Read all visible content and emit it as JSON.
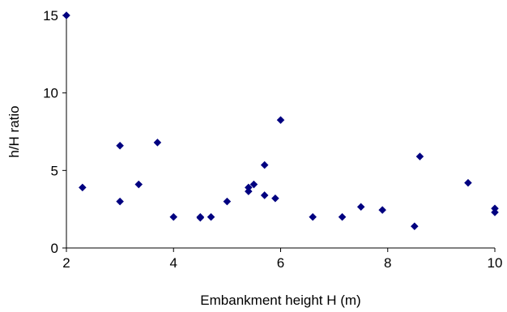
{
  "chart_data": {
    "type": "scatter",
    "xlabel": "Embankment height H (m)",
    "ylabel": "h/H ratio",
    "xlim": [
      2,
      10
    ],
    "ylim": [
      0,
      15
    ],
    "x_ticks": [
      "2",
      "4",
      "6",
      "8",
      "10"
    ],
    "y_ticks": [
      "0",
      "5",
      "10",
      "15"
    ],
    "grid": false,
    "marker": "diamond",
    "marker_color": "#000080",
    "series": [
      {
        "points": [
          [
            2.0,
            15.0
          ],
          [
            2.3,
            3.9
          ],
          [
            3.0,
            6.6
          ],
          [
            3.0,
            3.0
          ],
          [
            3.35,
            4.1
          ],
          [
            3.7,
            6.8
          ],
          [
            4.0,
            2.0
          ],
          [
            4.5,
            2.0
          ],
          [
            4.5,
            1.95
          ],
          [
            4.7,
            2.0
          ],
          [
            5.0,
            3.0
          ],
          [
            5.4,
            3.9
          ],
          [
            5.4,
            3.65
          ],
          [
            5.5,
            4.1
          ],
          [
            5.7,
            5.35
          ],
          [
            5.7,
            3.4
          ],
          [
            5.9,
            3.2
          ],
          [
            6.0,
            8.25
          ],
          [
            6.6,
            2.0
          ],
          [
            7.15,
            2.0
          ],
          [
            7.5,
            2.65
          ],
          [
            7.9,
            2.45
          ],
          [
            8.5,
            1.4
          ],
          [
            8.6,
            5.9
          ],
          [
            9.5,
            4.2
          ],
          [
            10.0,
            2.55
          ],
          [
            10.0,
            2.3
          ]
        ]
      }
    ]
  }
}
